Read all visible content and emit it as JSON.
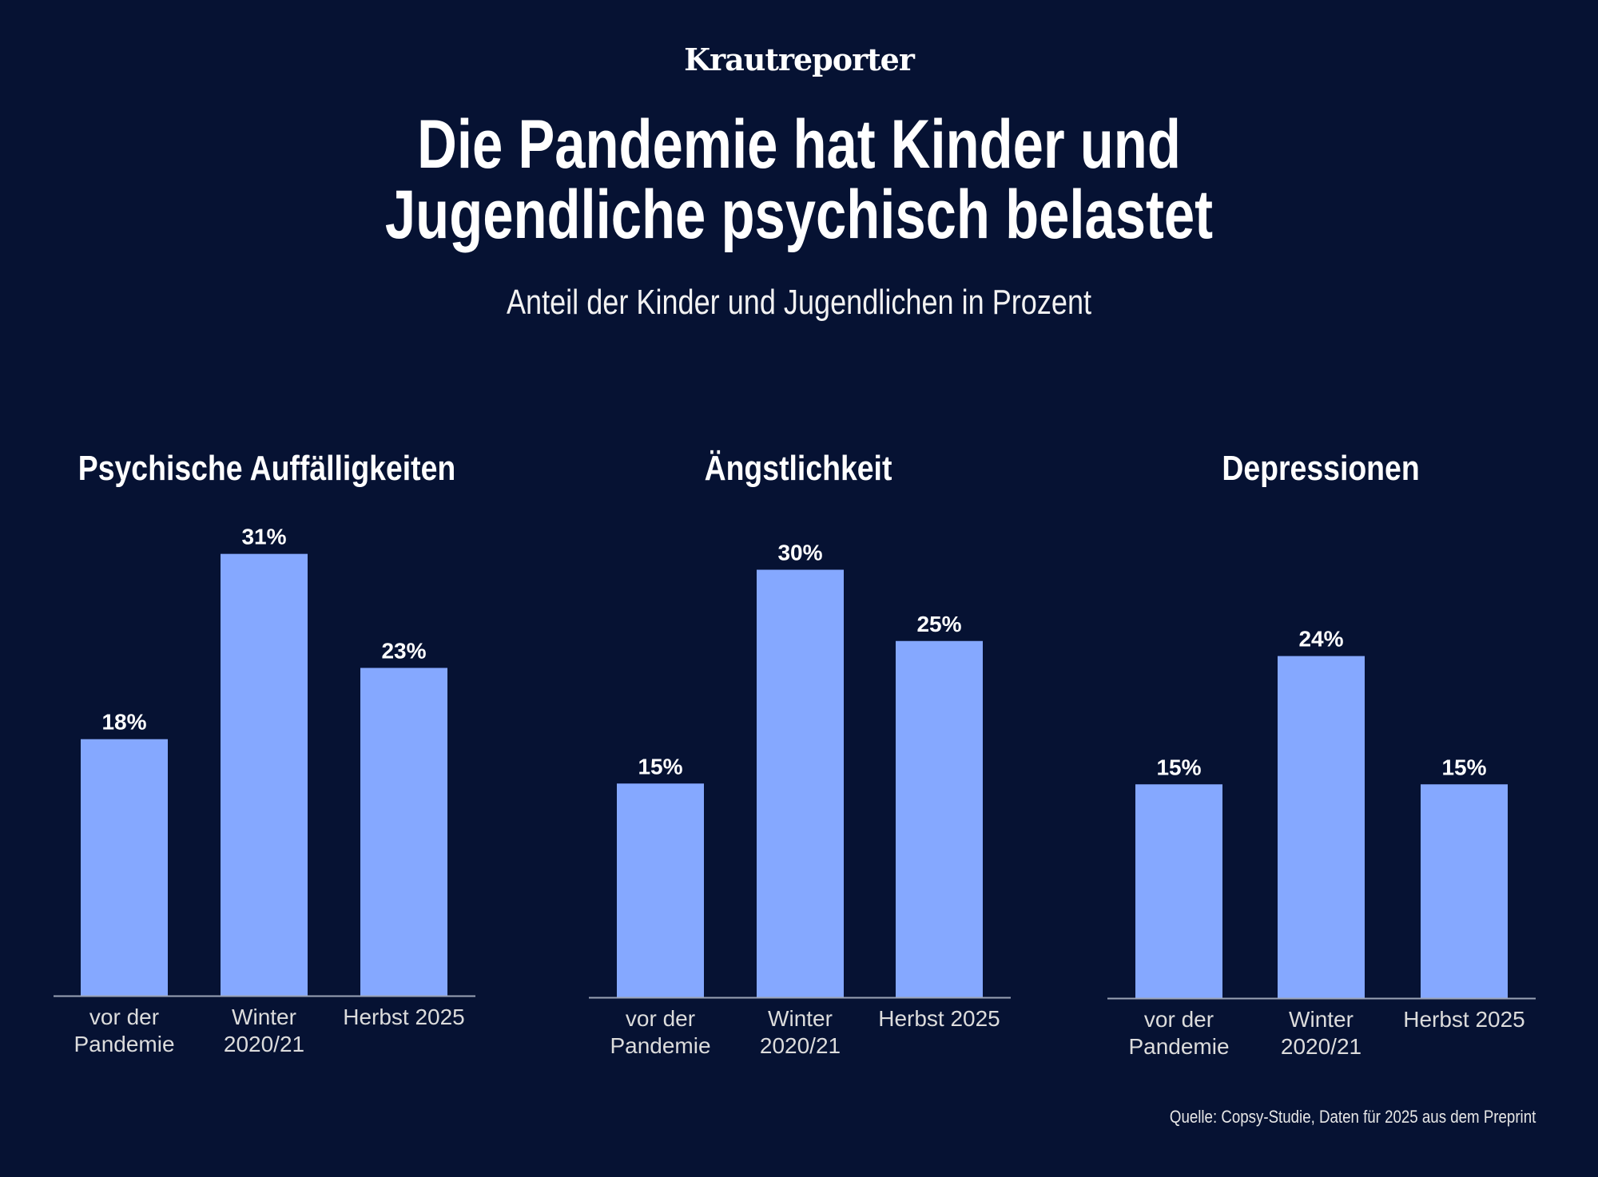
{
  "logo": "Krautreporter",
  "title_lines": [
    "Die Pandemie hat Kinder und",
    "Jugendliche psychisch belastet"
  ],
  "subtitle": "Anteil der Kinder und Jugendlichen in Prozent",
  "source": "Quelle: Copsy-Studie, Daten für 2025 aus dem Preprint",
  "colors": {
    "background": "#061233",
    "bar": "#85a8ff",
    "text": "#ffffff"
  },
  "chart_data": [
    {
      "type": "bar",
      "title": "Psychische Auffälligkeiten",
      "categories": [
        [
          "vor der",
          "Pandemie"
        ],
        [
          "Winter",
          "2020/21"
        ],
        [
          "Herbst 2025"
        ]
      ],
      "values": [
        18,
        31,
        23
      ],
      "labels": [
        "18%",
        "31%",
        "23%"
      ],
      "grid": false
    },
    {
      "type": "bar",
      "title": "Ängstlichkeit",
      "categories": [
        [
          "vor der",
          "Pandemie"
        ],
        [
          "Winter",
          "2020/21"
        ],
        [
          "Herbst 2025"
        ]
      ],
      "values": [
        15,
        30,
        25
      ],
      "labels": [
        "15%",
        "30%",
        "25%"
      ],
      "grid": false
    },
    {
      "type": "bar",
      "title": "Depressionen",
      "categories": [
        [
          "vor der",
          "Pandemie"
        ],
        [
          "Winter",
          "2020/21"
        ],
        [
          "Herbst 2025"
        ]
      ],
      "values": [
        15,
        24,
        15
      ],
      "labels": [
        "15%",
        "24%",
        "15%"
      ],
      "grid": false
    }
  ]
}
